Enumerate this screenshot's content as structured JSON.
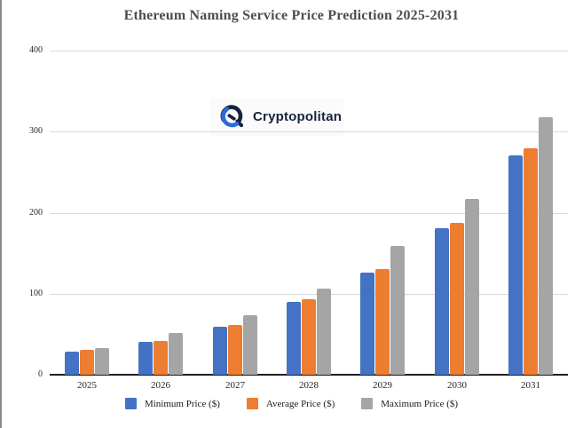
{
  "window": {
    "left_border_color": "#8a8a8a",
    "background_color": "#ffffff"
  },
  "logo": {
    "text": "Cryptopolitan",
    "icon": "cryptopolitan-q-icon",
    "icon_navy": "#16243f",
    "icon_blue": "#2e6bd6"
  },
  "chart_data": {
    "type": "bar",
    "title": "Ethereum Naming Service Price Prediction 2025-2031",
    "title_color": "#4d4d4d",
    "categories": [
      "2025",
      "2026",
      "2027",
      "2028",
      "2029",
      "2030",
      "2031"
    ],
    "series": [
      {
        "name": "Minimum Price ($)",
        "color": "#4472c4",
        "values": [
          29,
          41,
          59,
          90,
          126,
          181,
          271
        ]
      },
      {
        "name": "Average Price ($)",
        "color": "#ed7d31",
        "values": [
          31,
          42,
          61,
          93,
          130,
          187,
          280
        ]
      },
      {
        "name": "Maximum Price ($)",
        "color": "#a5a5a5",
        "values": [
          33,
          52,
          73,
          106,
          159,
          217,
          318
        ]
      }
    ],
    "xlabel": "",
    "ylabel": "",
    "ylim": [
      0,
      400
    ],
    "yticks": [
      0,
      100,
      200,
      300,
      400
    ],
    "grid": true,
    "gridline_color": "#d9d9d9",
    "axis_line_color": "#1f1f1f",
    "legend_position": "bottom"
  }
}
